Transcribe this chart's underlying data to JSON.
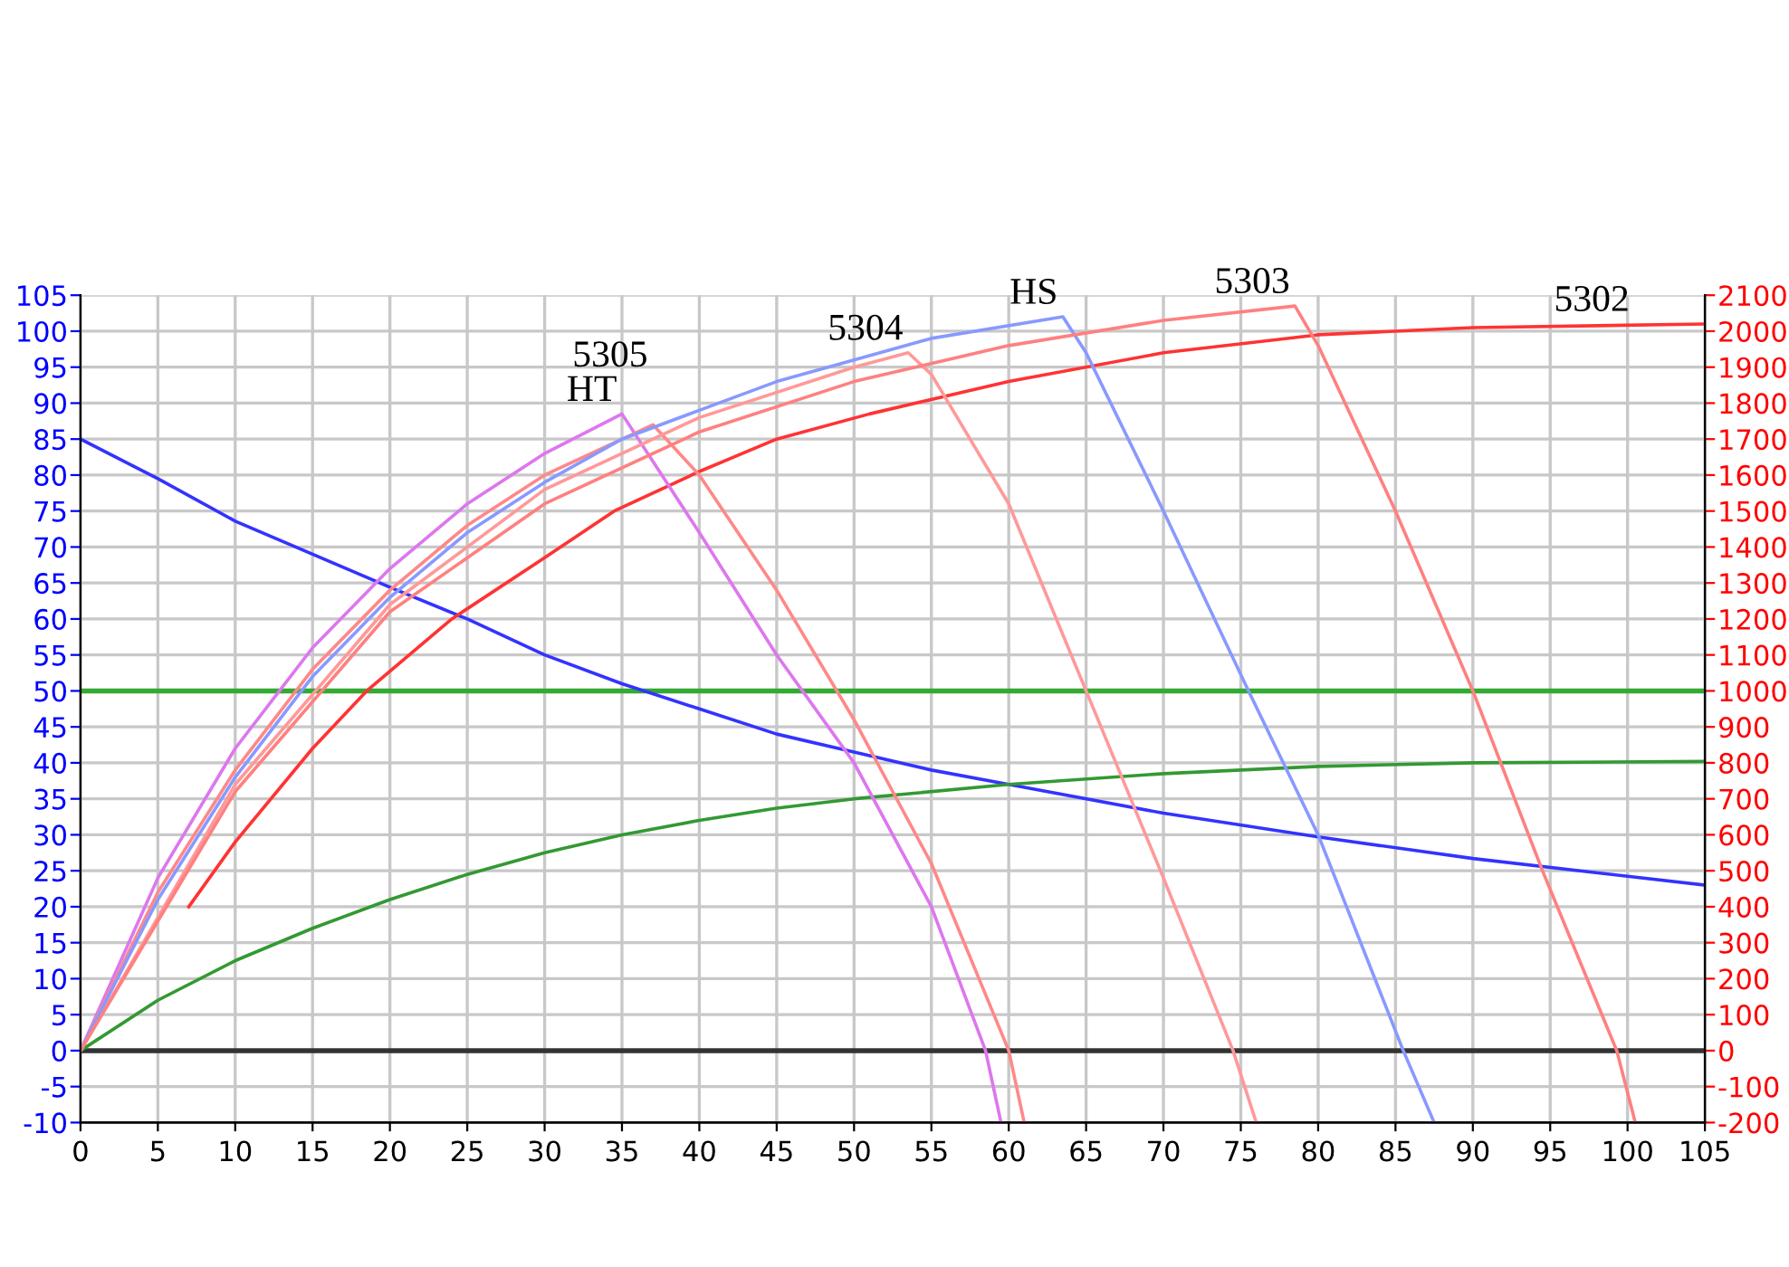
{
  "chart_data": {
    "type": "line",
    "xlim": [
      0,
      105
    ],
    "xticks": [
      0,
      5,
      10,
      15,
      20,
      25,
      30,
      35,
      40,
      45,
      50,
      55,
      60,
      65,
      70,
      75,
      80,
      85,
      90,
      95,
      100,
      105
    ],
    "ylim": [
      -10,
      105
    ],
    "yticks": [
      -10,
      -5,
      0,
      5,
      10,
      15,
      20,
      25,
      30,
      35,
      40,
      45,
      50,
      55,
      60,
      65,
      70,
      75,
      80,
      85,
      90,
      95,
      100,
      105
    ],
    "y2lim": [
      -200,
      2100
    ],
    "y2ticks": [
      -200,
      -100,
      0,
      100,
      200,
      300,
      400,
      500,
      600,
      700,
      800,
      900,
      1000,
      1100,
      1200,
      1300,
      1400,
      1500,
      1600,
      1700,
      1800,
      1900,
      2000,
      2100
    ],
    "grid": true,
    "marker": "none",
    "line_style": "solid",
    "series": [
      {
        "color": "#3333ff",
        "x": [
          0,
          5,
          10,
          15,
          20,
          25,
          30,
          35,
          40,
          45,
          50,
          55,
          60,
          70,
          80,
          90,
          105
        ],
        "values": [
          85,
          79.5,
          73.6,
          69,
          64.4,
          60,
          55,
          51,
          47.5,
          44,
          41.5,
          39,
          37,
          33,
          29.7,
          26.7,
          23
        ]
      },
      {
        "color": "#339933",
        "x": [
          0,
          5,
          10,
          15,
          20,
          25,
          30,
          35,
          40,
          45,
          50,
          60,
          70,
          80,
          90,
          105
        ],
        "values": [
          0,
          7,
          12.5,
          17,
          21,
          24.5,
          27.5,
          30,
          32,
          33.7,
          35,
          37,
          38.5,
          39.5,
          40,
          40.2
        ]
      },
      {
        "name": "5302",
        "color": "#ff3333",
        "x": [
          7,
          10,
          15,
          18.5,
          24,
          30,
          34.5,
          40,
          45,
          51,
          60,
          70,
          80,
          90,
          105
        ],
        "values": [
          20,
          29,
          42,
          50,
          60,
          68.5,
          75,
          80.5,
          85,
          88.5,
          93,
          97,
          99.5,
          100.5,
          101
        ]
      },
      {
        "name": "HT",
        "color": "#dd77ee",
        "x": [
          0,
          5,
          10,
          15,
          20,
          25,
          30,
          35,
          40,
          45,
          50,
          55,
          58.5,
          59.5
        ],
        "values": [
          0,
          24,
          42,
          56,
          67,
          76,
          83,
          88.5,
          72,
          55,
          40,
          20,
          0,
          -10
        ]
      },
      {
        "name": "5305",
        "color": "#ff8888",
        "x": [
          0,
          5,
          10,
          15,
          20,
          25,
          30,
          37,
          40,
          45,
          50,
          55,
          60,
          61
        ],
        "values": [
          0,
          22,
          39,
          53,
          64,
          73,
          80,
          87,
          80,
          64,
          46,
          26,
          0,
          -10
        ]
      },
      {
        "name": "5304",
        "color": "#ff9999",
        "x": [
          0,
          10,
          20,
          30,
          40,
          50,
          53.5,
          55,
          60,
          65,
          70,
          74.5,
          76
        ],
        "values": [
          0,
          37,
          62,
          78,
          88,
          95,
          97,
          94,
          76,
          50,
          24,
          0,
          -10
        ]
      },
      {
        "name": "HS",
        "color": "#8899ff",
        "x": [
          0,
          5,
          10,
          15,
          20,
          25,
          30,
          35,
          40,
          45,
          50,
          55,
          63.5,
          65,
          70,
          75.5,
          80,
          85.5,
          87.5
        ],
        "values": [
          0,
          21,
          38,
          52,
          63,
          72,
          79,
          85,
          89,
          93,
          96,
          99,
          102,
          97,
          75,
          50,
          30,
          0,
          -10
        ]
      },
      {
        "name": "5303",
        "color": "#ff8080",
        "x": [
          0,
          10,
          20,
          30,
          40,
          50,
          60,
          70,
          78.5,
          80,
          85,
          90,
          94.5,
          99.3,
          100.5
        ],
        "values": [
          0,
          36,
          61,
          76,
          86,
          93,
          98,
          101.5,
          103.5,
          98,
          75,
          50,
          25,
          0,
          -10
        ]
      }
    ],
    "ref_lines": [
      {
        "axis": "y",
        "value": 50,
        "color": "#33aa33"
      },
      {
        "axis": "y",
        "value": 0,
        "color": "#333333"
      }
    ]
  }
}
